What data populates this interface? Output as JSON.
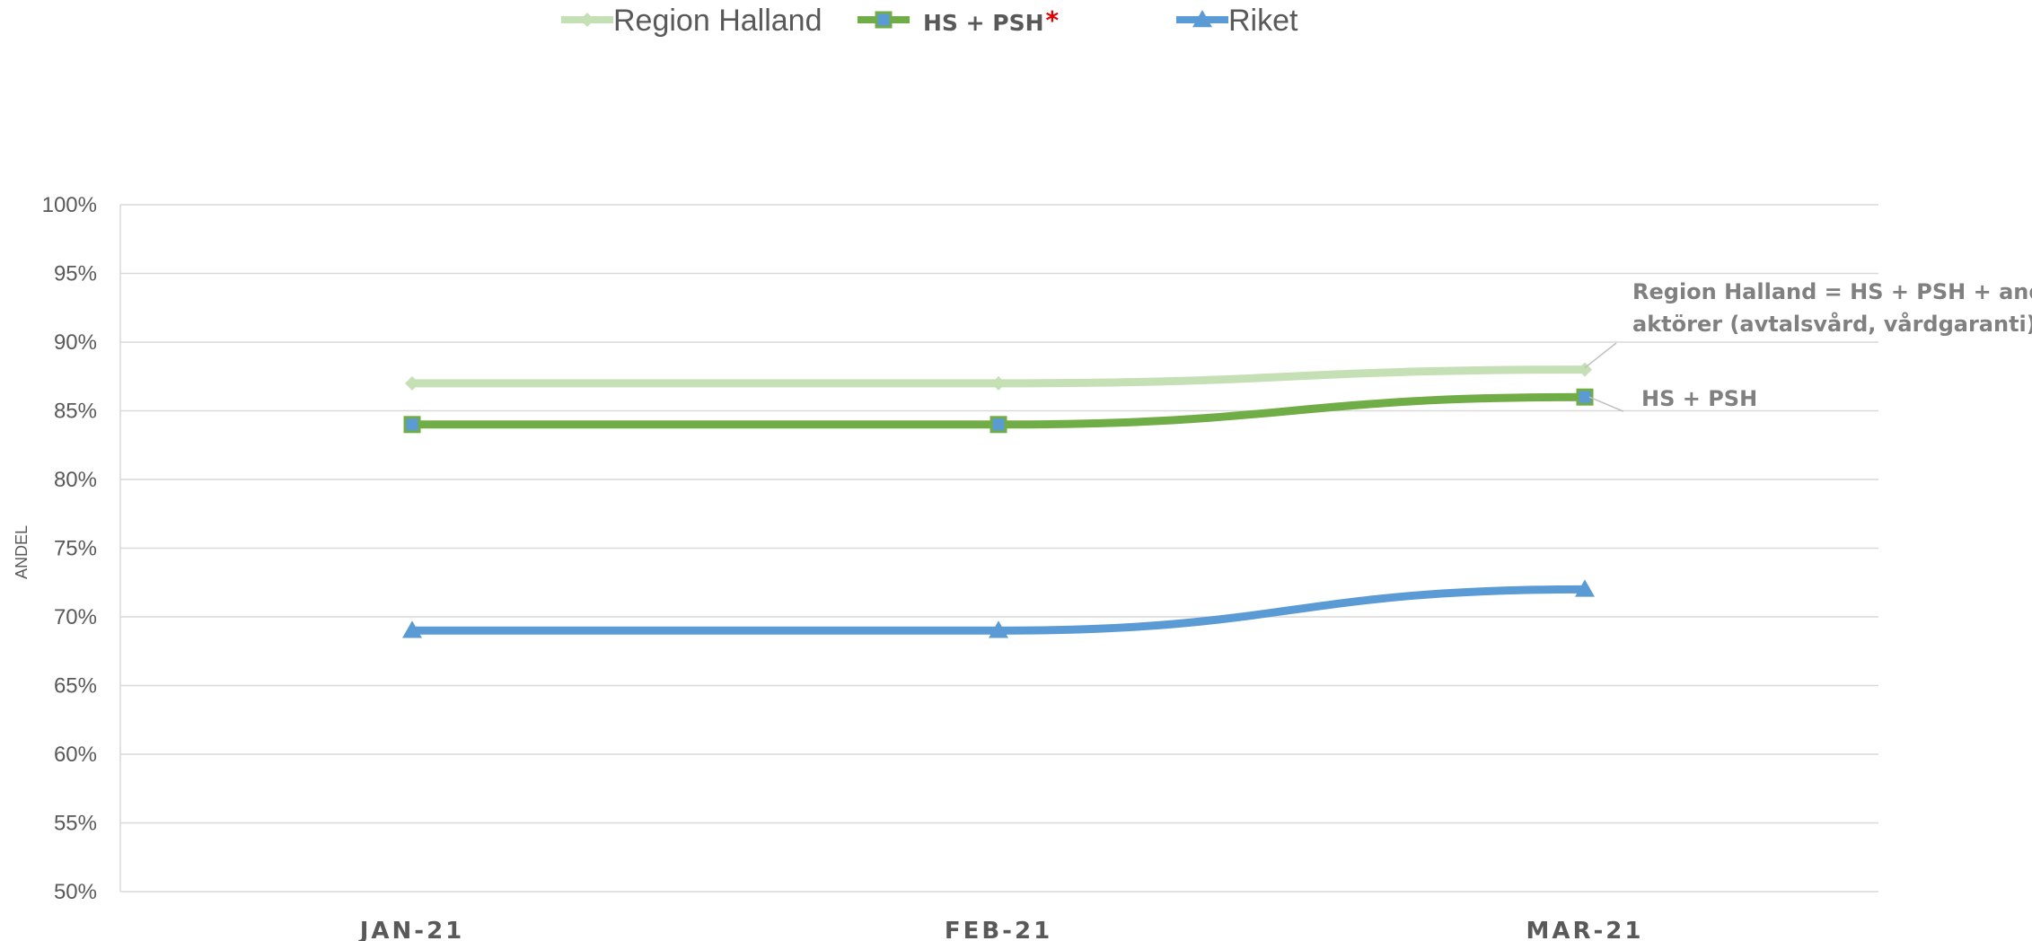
{
  "chart_data": {
    "type": "line",
    "categories": [
      "JAN-21",
      "FEB-21",
      "MAR-21"
    ],
    "ylabel": "ANDEL",
    "ylim": [
      50,
      100
    ],
    "ytick_step": 5,
    "ytick_suffix": "%",
    "grid": true,
    "legend_position": "top-center",
    "series": [
      {
        "name": "Region Halland",
        "values": [
          87,
          87,
          88
        ],
        "color": "#c5e0b4",
        "marker": "diamond"
      },
      {
        "name": "HS + PSH",
        "name_suffix": "*",
        "values": [
          84,
          84,
          86
        ],
        "color": "#70ad47",
        "marker": "square"
      },
      {
        "name": "Riket",
        "values": [
          69,
          69,
          72
        ],
        "color": "#5b9bd5",
        "marker": "triangle"
      }
    ],
    "annotations": [
      {
        "lines": [
          "Region Halland = HS + PSH + andra",
          "aktörer (avtalsvård, vårdgaranti)"
        ],
        "series_index": 0
      },
      {
        "lines": [
          "HS + PSH"
        ],
        "series_index": 1
      }
    ]
  },
  "colors": {
    "gridline": "#d9d9d9",
    "axis_text": "#595959",
    "annotation_text": "#808080",
    "marker_square_fill": "#5b9bd5",
    "legend_star": "#e00000"
  }
}
